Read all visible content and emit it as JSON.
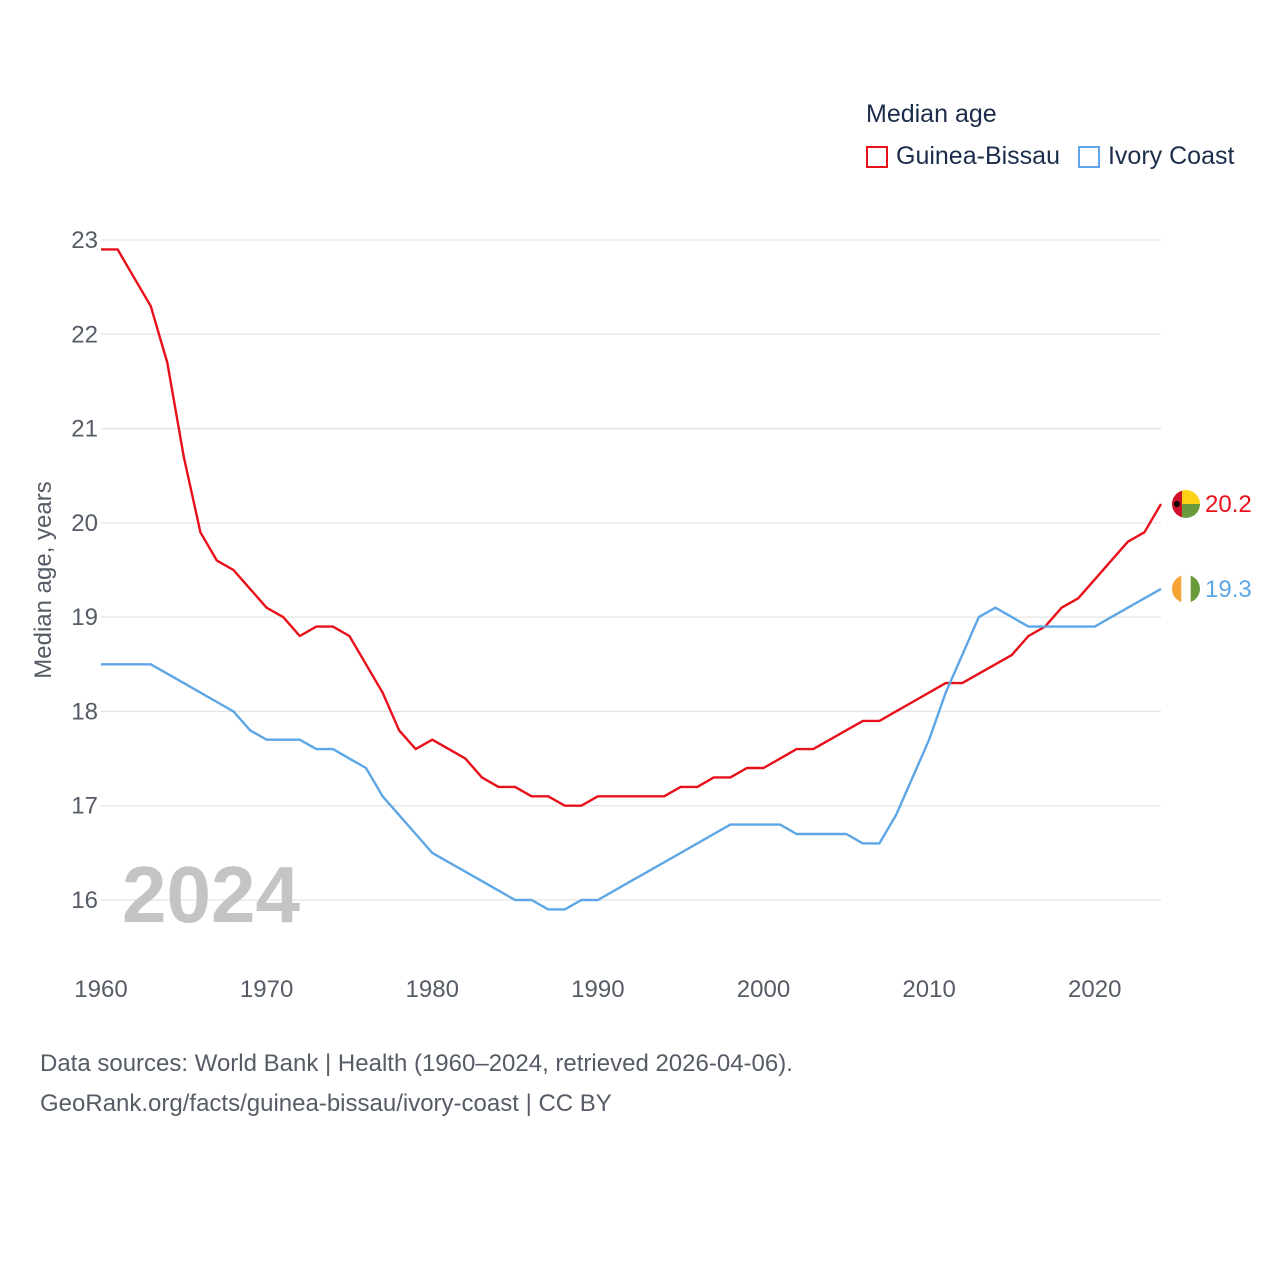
{
  "legend": {
    "title": "Median age",
    "series": [
      {
        "name": "Guinea-Bissau",
        "color": "#e8101a"
      },
      {
        "name": "Ivory Coast",
        "color": "#5ea6e6"
      }
    ]
  },
  "watermark_year": "2024",
  "footer": {
    "line1": "Data sources: World Bank | Health (1960–2024, retrieved 2026-04-06).",
    "line2": "GeoRank.org/facts/guinea-bissau/ivory-coast | CC BY"
  },
  "chart_data": {
    "type": "line",
    "title": "Median age",
    "xlabel": "",
    "ylabel": "Median age, years",
    "xlim": [
      1960,
      2024
    ],
    "ylim": [
      15.5,
      23
    ],
    "xticks": [
      1960,
      1970,
      1980,
      1990,
      2000,
      2010,
      2020
    ],
    "yticks": [
      16,
      17,
      18,
      19,
      20,
      21,
      22,
      23
    ],
    "grid": true,
    "legend_position": "top-right",
    "x": [
      1960,
      1961,
      1962,
      1963,
      1964,
      1965,
      1966,
      1967,
      1968,
      1969,
      1970,
      1971,
      1972,
      1973,
      1974,
      1975,
      1976,
      1977,
      1978,
      1979,
      1980,
      1981,
      1982,
      1983,
      1984,
      1985,
      1986,
      1987,
      1988,
      1989,
      1990,
      1991,
      1992,
      1993,
      1994,
      1995,
      1996,
      1997,
      1998,
      1999,
      2000,
      2001,
      2002,
      2003,
      2004,
      2005,
      2006,
      2007,
      2008,
      2009,
      2010,
      2011,
      2012,
      2013,
      2014,
      2015,
      2016,
      2017,
      2018,
      2019,
      2020,
      2021,
      2022,
      2023,
      2024
    ],
    "series": [
      {
        "name": "Guinea-Bissau",
        "color": "#e8101a",
        "end_label": "20.2",
        "values": [
          22.9,
          22.9,
          22.6,
          22.3,
          21.7,
          20.7,
          19.9,
          19.6,
          19.5,
          19.3,
          19.1,
          19.0,
          18.8,
          18.9,
          18.9,
          18.8,
          18.5,
          18.2,
          17.8,
          17.6,
          17.7,
          17.6,
          17.5,
          17.3,
          17.2,
          17.2,
          17.1,
          17.1,
          17.0,
          17.0,
          17.1,
          17.1,
          17.1,
          17.1,
          17.1,
          17.2,
          17.2,
          17.3,
          17.3,
          17.4,
          17.4,
          17.5,
          17.6,
          17.6,
          17.7,
          17.8,
          17.9,
          17.9,
          18.0,
          18.1,
          18.2,
          18.3,
          18.3,
          18.4,
          18.5,
          18.6,
          18.8,
          18.9,
          19.1,
          19.2,
          19.4,
          19.6,
          19.8,
          19.9,
          20.2
        ]
      },
      {
        "name": "Ivory Coast",
        "color": "#5ea6e6",
        "end_label": "19.3",
        "values": [
          18.5,
          18.5,
          18.5,
          18.5,
          18.4,
          18.3,
          18.2,
          18.1,
          18.0,
          17.8,
          17.7,
          17.7,
          17.7,
          17.6,
          17.6,
          17.5,
          17.4,
          17.1,
          16.9,
          16.7,
          16.5,
          16.4,
          16.3,
          16.2,
          16.1,
          16.0,
          16.0,
          15.9,
          15.9,
          16.0,
          16.0,
          16.1,
          16.2,
          16.3,
          16.4,
          16.5,
          16.6,
          16.7,
          16.8,
          16.8,
          16.8,
          16.8,
          16.7,
          16.7,
          16.7,
          16.7,
          16.6,
          16.6,
          16.9,
          17.3,
          17.7,
          18.2,
          18.6,
          19.0,
          19.1,
          19.0,
          18.9,
          18.9,
          18.9,
          18.9,
          18.9,
          19.0,
          19.1,
          19.2,
          19.3
        ]
      }
    ]
  }
}
